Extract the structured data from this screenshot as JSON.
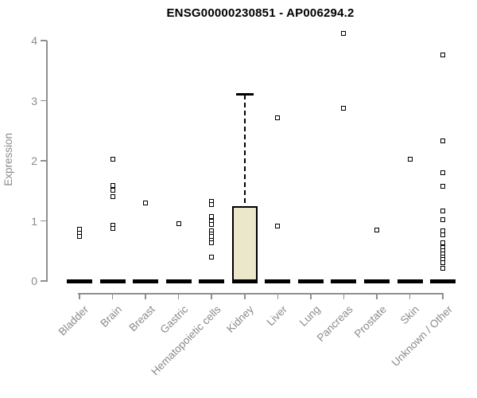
{
  "chart_data": {
    "type": "boxplot",
    "title": "ENSG00000230851 - AP006294.2",
    "ylabel": "Expression",
    "xlabel": "",
    "ylim": [
      0,
      4
    ],
    "yticks": [
      0,
      1,
      2,
      3,
      4
    ],
    "grid": false,
    "legend": "none",
    "categories": [
      "Bladder",
      "Brain",
      "Breast",
      "Gastric",
      "Hematopoietic cells",
      "Kidney",
      "Liver",
      "Lung",
      "Pancreas",
      "Prostate",
      "Skin",
      "Unknown / Other"
    ],
    "series": [
      {
        "category": "Bladder",
        "median": 0,
        "q1": 0,
        "q3": 0,
        "whisker_low": 0,
        "whisker_high": 0,
        "outliers": [
          0.86,
          0.8,
          0.74
        ]
      },
      {
        "category": "Brain",
        "median": 0,
        "q1": 0,
        "q3": 0,
        "whisker_low": 0,
        "whisker_high": 0,
        "outliers": [
          2.02,
          1.59,
          1.51,
          1.4,
          0.93,
          0.87
        ]
      },
      {
        "category": "Breast",
        "median": 0,
        "q1": 0,
        "q3": 0,
        "whisker_low": 0,
        "whisker_high": 0,
        "outliers": [
          1.3
        ]
      },
      {
        "category": "Gastric",
        "median": 0,
        "q1": 0,
        "q3": 0,
        "whisker_low": 0,
        "whisker_high": 0,
        "outliers": [
          0.95
        ]
      },
      {
        "category": "Hematopoietic cells",
        "median": 0,
        "q1": 0,
        "q3": 0,
        "whisker_low": 0,
        "whisker_high": 0,
        "outliers": [
          1.32,
          1.27,
          1.07,
          0.99,
          0.94,
          0.84,
          0.78,
          0.74,
          0.68,
          0.64,
          0.4
        ]
      },
      {
        "category": "Kidney",
        "median": 0,
        "q1": 0,
        "q3": 1.25,
        "whisker_low": 0,
        "whisker_high": 3.1,
        "outliers": []
      },
      {
        "category": "Liver",
        "median": 0,
        "q1": 0,
        "q3": 0,
        "whisker_low": 0,
        "whisker_high": 0,
        "outliers": [
          2.72,
          0.92
        ]
      },
      {
        "category": "Lung",
        "median": 0,
        "q1": 0,
        "q3": 0,
        "whisker_low": 0,
        "whisker_high": 0,
        "outliers": []
      },
      {
        "category": "Pancreas",
        "median": 0,
        "q1": 0,
        "q3": 0,
        "whisker_low": 0,
        "whisker_high": 0,
        "outliers": [
          4.12,
          2.88
        ]
      },
      {
        "category": "Prostate",
        "median": 0,
        "q1": 0,
        "q3": 0,
        "whisker_low": 0,
        "whisker_high": 0,
        "outliers": [
          0.85
        ]
      },
      {
        "category": "Skin",
        "median": 0,
        "q1": 0,
        "q3": 0,
        "whisker_low": 0,
        "whisker_high": 0,
        "outliers": [
          2.02
        ]
      },
      {
        "category": "Unknown / Other",
        "median": 0,
        "q1": 0,
        "q3": 0,
        "whisker_low": 0,
        "whisker_high": 0,
        "outliers": [
          3.76,
          2.33,
          1.8,
          1.57,
          1.17,
          1.02,
          0.84,
          0.77,
          0.64,
          0.56,
          0.5,
          0.45,
          0.4,
          0.36,
          0.31,
          0.21
        ]
      }
    ],
    "style": {
      "box_fill": "#ebe7cb",
      "box_border": "#000000",
      "median_bar_color": "#000000",
      "marker": "open-square",
      "marker_color": "#000000",
      "axis_color": "#8f8f8f",
      "tick_label_color": "#8a8a8a",
      "title_color": "#000000",
      "background": "#ffffff"
    }
  }
}
